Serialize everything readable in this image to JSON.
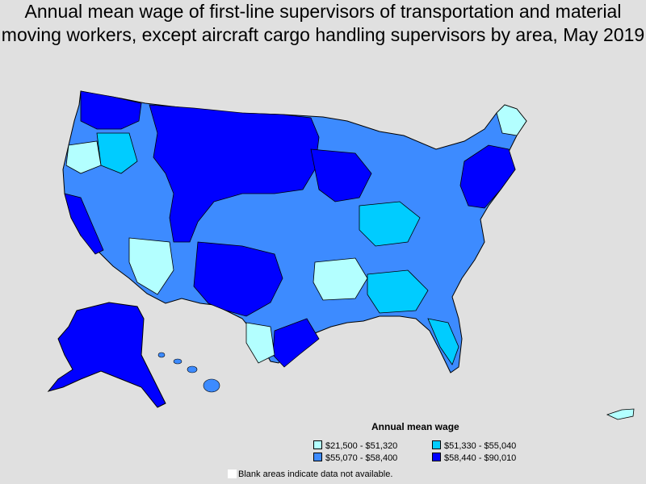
{
  "title": {
    "line1": "Annual mean wage of first-line supervisors of transportation and material",
    "line2": "moving workers, except aircraft cargo handling supervisors by area, May 2019"
  },
  "legend": {
    "title": "Annual mean wage",
    "items": [
      {
        "label": "$21,500 - $51,320",
        "color": "#b3ffff"
      },
      {
        "label": "$51,330 - $55,040",
        "color": "#00ccff"
      },
      {
        "label": "$55,070 - $58,400",
        "color": "#3d8bff"
      },
      {
        "label": "$58,440 - $90,010",
        "color": "#0000ff"
      }
    ]
  },
  "note": "Blank areas indicate data not available.",
  "colors": {
    "background": "#e0e0e0",
    "border": "#000000"
  }
}
